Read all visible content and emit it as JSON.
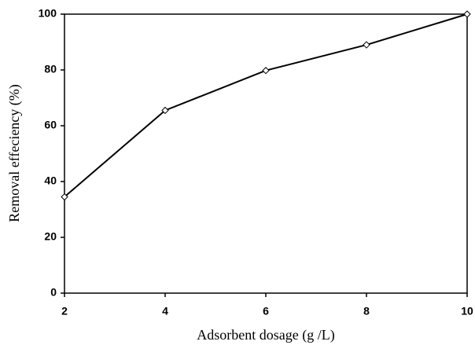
{
  "chart_data": {
    "type": "line",
    "x_label": "Adsorbent dosage (g /L)",
    "y_label": "Removal effeciency (%)",
    "x": [
      2,
      4,
      6,
      8,
      10
    ],
    "values": [
      34.5,
      65.5,
      79.8,
      89,
      100
    ],
    "color": "#000000",
    "xlim": [
      2,
      10
    ],
    "xticks": [
      2,
      4,
      6,
      8,
      10
    ],
    "ylim": [
      0,
      100
    ],
    "yticks": [
      0,
      20,
      40,
      60,
      80,
      100
    ],
    "grid": false
  }
}
